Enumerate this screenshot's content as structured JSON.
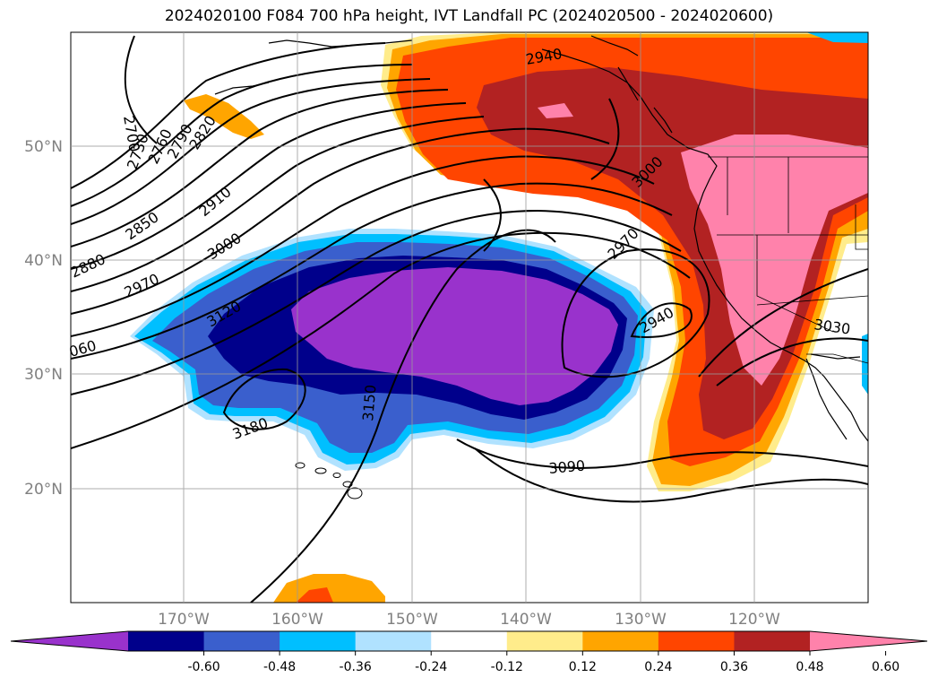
{
  "title": "2024020100 F084 700 hPa height, IVT Landfall PC (2024020500 - 2024020600)",
  "latitude_labels": [
    "50°N",
    "40°N",
    "30°N",
    "20°N"
  ],
  "longitude_labels": [
    "170°W",
    "160°W",
    "150°W",
    "140°W",
    "130°W",
    "120°W"
  ],
  "contour_labels": [
    "2700",
    "2730",
    "2760",
    "2790",
    "2820",
    "2850",
    "2880",
    "2910",
    "2940",
    "2940",
    "2970",
    "2970",
    "3000",
    "3000",
    "3030",
    "060",
    "3090",
    "3120",
    "3150",
    "3180"
  ],
  "colorbar": {
    "ticks": [
      "-0.60",
      "-0.48",
      "-0.36",
      "-0.24",
      "-0.12",
      "0.12",
      "0.24",
      "0.36",
      "0.48",
      "0.60"
    ],
    "colors": [
      "#9932cc",
      "#00008b",
      "#3a5fcd",
      "#00bfff",
      "#b0e2ff",
      "#ffffff",
      "#ffec8b",
      "#ffa500",
      "#ff4500",
      "#b22222",
      "#ff82ab"
    ]
  }
}
